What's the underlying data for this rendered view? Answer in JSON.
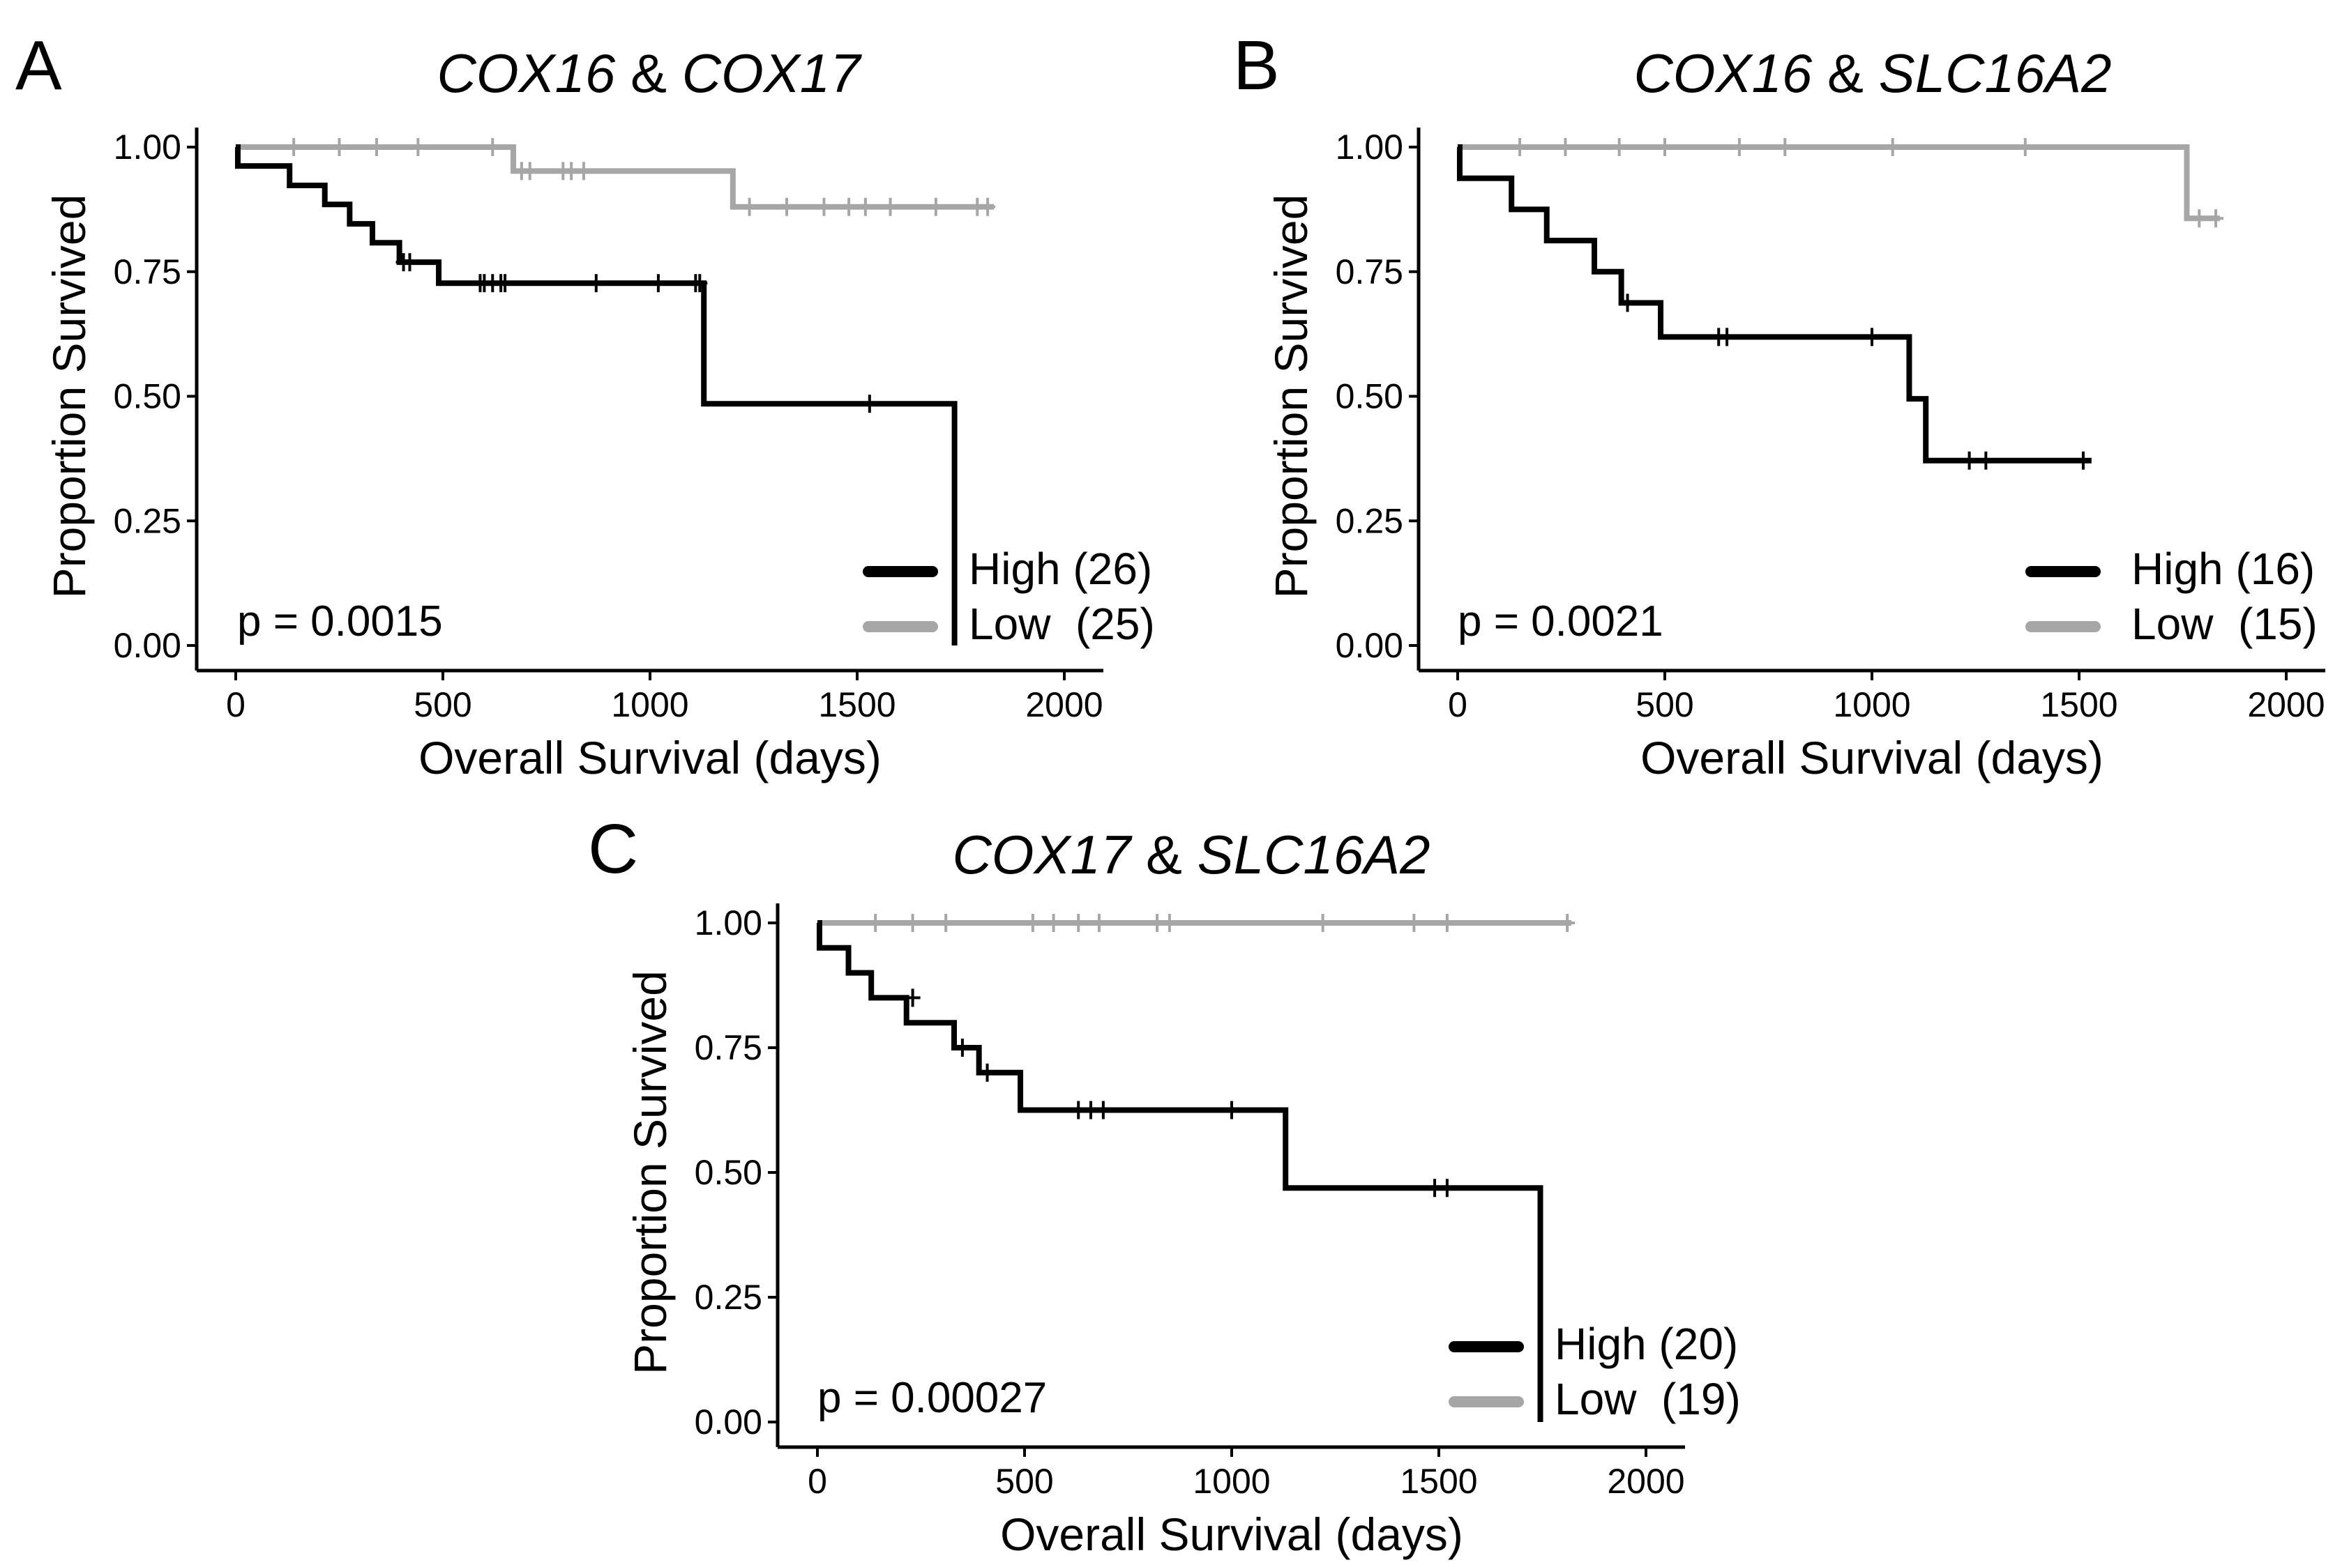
{
  "colors": {
    "high": "#000000",
    "low": "#a6a6a6",
    "axis": "#000000"
  },
  "chart_data": [
    {
      "panel": "A",
      "type": "line",
      "subtype": "kaplan-meier",
      "title": {
        "gene1": "COX16",
        "sep": " & ",
        "gene2": "COX17"
      },
      "xlabel": "Overall Survival (days)",
      "ylabel": "Proportion Survived",
      "xlim": [
        0,
        2000
      ],
      "ylim": [
        0,
        1
      ],
      "xticks": [
        0,
        500,
        1000,
        1500,
        2000
      ],
      "yticks": [
        "0.00",
        "0.25",
        "0.50",
        "0.75",
        "1.00"
      ],
      "pvalue": "p = 0.0015",
      "legend": {
        "position": "bottom-right"
      },
      "series": [
        {
          "name": "High",
          "label": "High (26)",
          "color": "high",
          "steps": [
            [
              0,
              1.0
            ],
            [
              5,
              0.962
            ],
            [
              130,
              0.923
            ],
            [
              215,
              0.885
            ],
            [
              275,
              0.846
            ],
            [
              330,
              0.808
            ],
            [
              395,
              0.769
            ],
            [
              490,
              0.727
            ],
            [
              1130,
              0.485
            ],
            [
              1735,
              0.0
            ]
          ],
          "end": 1735,
          "censors": [
            [
              405,
              0.769
            ],
            [
              420,
              0.769
            ],
            [
              590,
              0.727
            ],
            [
              600,
              0.727
            ],
            [
              620,
              0.727
            ],
            [
              640,
              0.727
            ],
            [
              650,
              0.727
            ],
            [
              870,
              0.727
            ],
            [
              1020,
              0.727
            ],
            [
              1110,
              0.727
            ],
            [
              1120,
              0.727
            ],
            [
              1530,
              0.485
            ]
          ]
        },
        {
          "name": "Low",
          "label": "Low  (25)",
          "color": "low",
          "steps": [
            [
              0,
              1.0
            ],
            [
              670,
              0.952
            ],
            [
              1200,
              0.88
            ]
          ],
          "end": 1830,
          "censors": [
            [
              140,
              1.0
            ],
            [
              250,
              1.0
            ],
            [
              340,
              1.0
            ],
            [
              440,
              1.0
            ],
            [
              620,
              1.0
            ],
            [
              690,
              0.952
            ],
            [
              710,
              0.952
            ],
            [
              790,
              0.952
            ],
            [
              810,
              0.952
            ],
            [
              840,
              0.952
            ],
            [
              1240,
              0.88
            ],
            [
              1330,
              0.88
            ],
            [
              1420,
              0.88
            ],
            [
              1480,
              0.88
            ],
            [
              1520,
              0.88
            ],
            [
              1580,
              0.88
            ],
            [
              1690,
              0.88
            ],
            [
              1790,
              0.88
            ],
            [
              1815,
              0.88
            ]
          ]
        }
      ]
    },
    {
      "panel": "B",
      "type": "line",
      "subtype": "kaplan-meier",
      "title": {
        "gene1": "COX16",
        "sep": " & ",
        "gene2": "SLC16A2"
      },
      "xlabel": "Overall Survival (days)",
      "ylabel": "Proportion Survived",
      "xlim": [
        0,
        2000
      ],
      "ylim": [
        0,
        1
      ],
      "xticks": [
        0,
        500,
        1000,
        1500,
        2000
      ],
      "yticks": [
        "0.00",
        "0.25",
        "0.50",
        "0.75",
        "1.00"
      ],
      "pvalue": "p = 0.0021",
      "legend": {
        "position": "bottom-right"
      },
      "series": [
        {
          "name": "High",
          "label": "High (16)",
          "color": "high",
          "steps": [
            [
              0,
              1.0
            ],
            [
              5,
              0.9375
            ],
            [
              130,
              0.875
            ],
            [
              215,
              0.8125
            ],
            [
              330,
              0.75
            ],
            [
              395,
              0.6875
            ],
            [
              490,
              0.619
            ],
            [
              1090,
              0.495
            ],
            [
              1130,
              0.371
            ]
          ],
          "end": 1530,
          "censors": [
            [
              410,
              0.6875
            ],
            [
              630,
              0.619
            ],
            [
              650,
              0.619
            ],
            [
              1000,
              0.619
            ],
            [
              1235,
              0.371
            ],
            [
              1275,
              0.371
            ],
            [
              1510,
              0.371
            ]
          ]
        },
        {
          "name": "Low",
          "label": "Low  (15)",
          "color": "low",
          "steps": [
            [
              0,
              1.0
            ],
            [
              1760,
              0.857
            ]
          ],
          "end": 1840,
          "censors": [
            [
              150,
              1.0
            ],
            [
              260,
              1.0
            ],
            [
              390,
              1.0
            ],
            [
              500,
              1.0
            ],
            [
              680,
              1.0
            ],
            [
              790,
              1.0
            ],
            [
              1050,
              1.0
            ],
            [
              1370,
              1.0
            ],
            [
              1790,
              0.857
            ],
            [
              1830,
              0.857
            ]
          ]
        }
      ]
    },
    {
      "panel": "C",
      "type": "line",
      "subtype": "kaplan-meier",
      "title": {
        "gene1": "COX17",
        "sep": " & ",
        "gene2": "SLC16A2"
      },
      "xlabel": "Overall Survival (days)",
      "ylabel": "Proportion Survived",
      "xlim": [
        0,
        2000
      ],
      "ylim": [
        0,
        1
      ],
      "xticks": [
        0,
        500,
        1000,
        1500,
        2000
      ],
      "yticks": [
        "0.00",
        "0.25",
        "0.50",
        "0.75",
        "1.00"
      ],
      "pvalue": "p = 0.00027",
      "legend": {
        "position": "bottom-right"
      },
      "series": [
        {
          "name": "High",
          "label": "High (20)",
          "color": "high",
          "steps": [
            [
              0,
              1.0
            ],
            [
              5,
              0.95
            ],
            [
              75,
              0.9
            ],
            [
              130,
              0.85
            ],
            [
              215,
              0.8
            ],
            [
              330,
              0.75
            ],
            [
              390,
              0.7
            ],
            [
              490,
              0.625
            ],
            [
              1130,
              0.469
            ],
            [
              1745,
              0.0
            ]
          ],
          "end": 1745,
          "censors": [
            [
              230,
              0.85
            ],
            [
              350,
              0.75
            ],
            [
              410,
              0.7
            ],
            [
              630,
              0.625
            ],
            [
              660,
              0.625
            ],
            [
              690,
              0.625
            ],
            [
              1000,
              0.625
            ],
            [
              1490,
              0.469
            ],
            [
              1520,
              0.469
            ]
          ]
        },
        {
          "name": "Low",
          "label": "Low  (19)",
          "color": "low",
          "steps": [
            [
              0,
              1.0
            ]
          ],
          "end": 1820,
          "censors": [
            [
              140,
              1.0
            ],
            [
              230,
              1.0
            ],
            [
              310,
              1.0
            ],
            [
              520,
              1.0
            ],
            [
              570,
              1.0
            ],
            [
              630,
              1.0
            ],
            [
              680,
              1.0
            ],
            [
              820,
              1.0
            ],
            [
              850,
              1.0
            ],
            [
              1220,
              1.0
            ],
            [
              1440,
              1.0
            ],
            [
              1520,
              1.0
            ],
            [
              1810,
              1.0
            ]
          ]
        }
      ]
    }
  ]
}
